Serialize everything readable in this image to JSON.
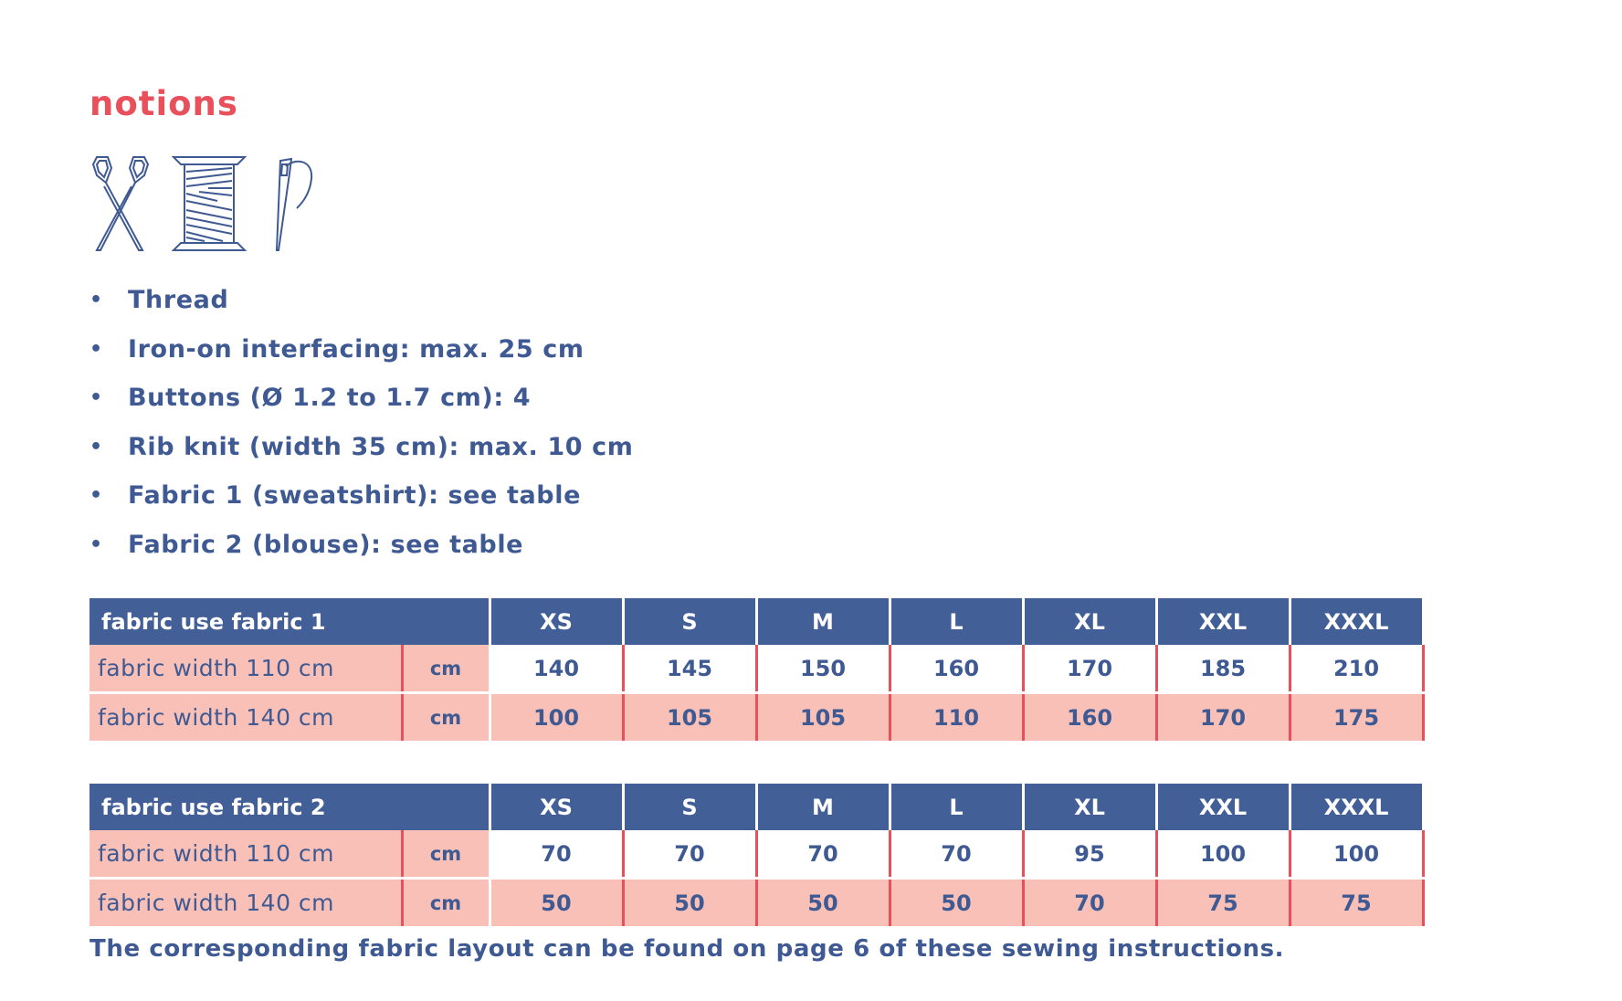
{
  "heading": "notions",
  "icons": [
    "scissors-icon",
    "thread-spool-icon",
    "needle-icon"
  ],
  "notions": [
    "Thread",
    "Iron-on interfacing: max. 25 cm",
    "Buttons (Ø 1.2 to 1.7 cm): 4",
    "Rib knit (width 35 cm): max. 10 cm",
    "Fabric 1 (sweatshirt): see table",
    "Fabric 2 (blouse): see table"
  ],
  "bullet": "•",
  "tables": [
    {
      "title": "fabric use fabric 1",
      "sizes": [
        "XS",
        "S",
        "M",
        "L",
        "XL",
        "XXL",
        "XXXL"
      ],
      "rows": [
        {
          "label": "fabric width 110 cm",
          "unit": "cm",
          "values": [
            "140",
            "145",
            "150",
            "160",
            "170",
            "185",
            "210"
          ]
        },
        {
          "label": "fabric width 140 cm",
          "unit": "cm",
          "values": [
            "100",
            "105",
            "105",
            "110",
            "160",
            "170",
            "175"
          ]
        }
      ]
    },
    {
      "title": "fabric use fabric 2",
      "sizes": [
        "XS",
        "S",
        "M",
        "L",
        "XL",
        "XXL",
        "XXXL"
      ],
      "rows": [
        {
          "label": "fabric width 110 cm",
          "unit": "cm",
          "values": [
            "70",
            "70",
            "70",
            "70",
            "95",
            "100",
            "100"
          ]
        },
        {
          "label": "fabric width 140 cm",
          "unit": "cm",
          "values": [
            "50",
            "50",
            "50",
            "50",
            "70",
            "75",
            "75"
          ]
        }
      ]
    }
  ],
  "footnote": "The corresponding fabric layout can be found on page 6 of these sewing instructions.",
  "colors": {
    "accent": "#e8505b",
    "navy": "#425f98",
    "pink": "#f8c0b6"
  }
}
